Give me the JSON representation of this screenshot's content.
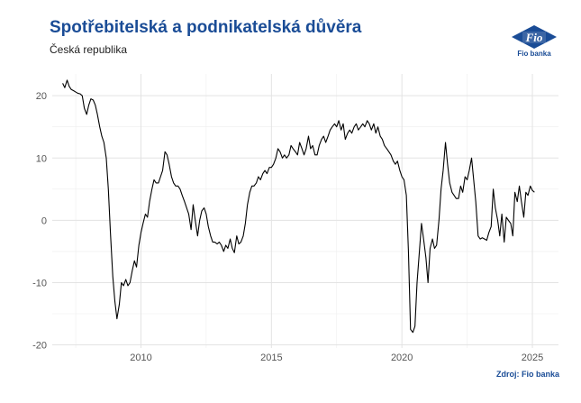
{
  "header": {
    "title": "Spotřebitelská a podnikatelská důvěra",
    "subtitle": "Česká republika",
    "logo_text": "Fio banka",
    "logo_mark": "Fio"
  },
  "footer": {
    "source": "Zdroj: Fio banka"
  },
  "colors": {
    "title": "#1a4c96",
    "line": "#000000",
    "grid": "#e3e3e3"
  },
  "chart_data": {
    "type": "line",
    "title": "Spotřebitelská a podnikatelská důvěra",
    "subtitle": "Česká republika",
    "xlabel": "",
    "ylabel": "",
    "xlim": [
      2006.6,
      2026.0
    ],
    "ylim": [
      -20.5,
      23.5
    ],
    "grid": true,
    "x_ticks": [
      2010,
      2015,
      2020,
      2025
    ],
    "x_tick_labels": [
      "2010",
      "2015",
      "2020",
      "2025"
    ],
    "y_ticks": [
      -20,
      -10,
      0,
      10,
      20
    ],
    "y_tick_labels": [
      "-20",
      "-10",
      "0",
      "10",
      "20"
    ],
    "series": [
      {
        "x": [
          2007.0,
          2007.08,
          2007.17,
          2007.25,
          2007.33,
          2007.42,
          2007.5,
          2007.58,
          2007.67,
          2007.75,
          2007.83,
          2007.92,
          2008.0,
          2008.08,
          2008.17,
          2008.25,
          2008.33,
          2008.42,
          2008.5,
          2008.58,
          2008.67,
          2008.75,
          2008.83,
          2008.92,
          2009.0,
          2009.08,
          2009.17,
          2009.25,
          2009.33,
          2009.42,
          2009.5,
          2009.58,
          2009.67,
          2009.75,
          2009.83,
          2009.92,
          2010.0,
          2010.08,
          2010.17,
          2010.25,
          2010.33,
          2010.42,
          2010.5,
          2010.58,
          2010.67,
          2010.75,
          2010.83,
          2010.92,
          2011.0,
          2011.08,
          2011.17,
          2011.25,
          2011.33,
          2011.42,
          2011.5,
          2011.58,
          2011.67,
          2011.75,
          2011.83,
          2011.92,
          2012.0,
          2012.08,
          2012.17,
          2012.25,
          2012.33,
          2012.42,
          2012.5,
          2012.58,
          2012.67,
          2012.75,
          2012.83,
          2012.92,
          2013.0,
          2013.08,
          2013.17,
          2013.25,
          2013.33,
          2013.42,
          2013.5,
          2013.58,
          2013.67,
          2013.75,
          2013.83,
          2013.92,
          2014.0,
          2014.08,
          2014.17,
          2014.25,
          2014.33,
          2014.42,
          2014.5,
          2014.58,
          2014.67,
          2014.75,
          2014.83,
          2014.92,
          2015.0,
          2015.08,
          2015.17,
          2015.25,
          2015.33,
          2015.42,
          2015.5,
          2015.58,
          2015.67,
          2015.75,
          2015.83,
          2015.92,
          2016.0,
          2016.08,
          2016.17,
          2016.25,
          2016.33,
          2016.42,
          2016.5,
          2016.58,
          2016.67,
          2016.75,
          2016.83,
          2016.92,
          2017.0,
          2017.08,
          2017.17,
          2017.25,
          2017.33,
          2017.42,
          2017.5,
          2017.58,
          2017.67,
          2017.75,
          2017.83,
          2017.92,
          2018.0,
          2018.08,
          2018.17,
          2018.25,
          2018.33,
          2018.42,
          2018.5,
          2018.58,
          2018.67,
          2018.75,
          2018.83,
          2018.92,
          2019.0,
          2019.08,
          2019.17,
          2019.25,
          2019.33,
          2019.42,
          2019.5,
          2019.58,
          2019.67,
          2019.75,
          2019.83,
          2019.92,
          2020.0,
          2020.08,
          2020.17,
          2020.25,
          2020.33,
          2020.42,
          2020.5,
          2020.58,
          2020.67,
          2020.75,
          2020.83,
          2020.92,
          2021.0,
          2021.08,
          2021.17,
          2021.25,
          2021.33,
          2021.42,
          2021.5,
          2021.58,
          2021.67,
          2021.75,
          2021.83,
          2021.92,
          2022.0,
          2022.08,
          2022.17,
          2022.25,
          2022.33,
          2022.42,
          2022.5,
          2022.58,
          2022.67,
          2022.75,
          2022.83,
          2022.92,
          2023.0,
          2023.08,
          2023.17,
          2023.25,
          2023.33,
          2023.42,
          2023.5,
          2023.58,
          2023.67,
          2023.75,
          2023.83,
          2023.92,
          2024.0,
          2024.08,
          2024.17,
          2024.25,
          2024.33,
          2024.42,
          2024.5,
          2024.58,
          2024.67,
          2024.75,
          2024.83,
          2024.92,
          2025.0,
          2025.08
        ],
        "y": [
          22.0,
          21.3,
          22.5,
          21.5,
          21.0,
          20.8,
          20.6,
          20.4,
          20.3,
          20.0,
          18.0,
          17.0,
          18.5,
          19.5,
          19.3,
          18.5,
          17.0,
          15.0,
          13.5,
          12.5,
          10.0,
          5.0,
          -2.0,
          -9.0,
          -13.0,
          -15.8,
          -13.5,
          -10.0,
          -10.5,
          -9.5,
          -10.5,
          -10.0,
          -8.0,
          -6.5,
          -7.5,
          -4.0,
          -2.0,
          -0.5,
          1.0,
          0.5,
          3.0,
          5.0,
          6.5,
          6.0,
          6.0,
          7.0,
          8.0,
          11.0,
          10.5,
          9.0,
          7.0,
          6.0,
          5.5,
          5.5,
          5.0,
          4.0,
          3.0,
          2.0,
          1.0,
          -1.5,
          2.5,
          0.0,
          -2.5,
          0.0,
          1.5,
          2.0,
          1.0,
          -1.0,
          -2.5,
          -3.5,
          -3.5,
          -3.8,
          -3.5,
          -4.0,
          -5.0,
          -4.0,
          -4.5,
          -3.0,
          -4.5,
          -5.2,
          -2.5,
          -3.8,
          -3.5,
          -2.5,
          -0.5,
          2.5,
          4.5,
          5.5,
          5.5,
          6.0,
          7.0,
          6.5,
          7.5,
          8.0,
          7.5,
          8.5,
          8.5,
          9.0,
          10.0,
          11.5,
          11.0,
          10.0,
          10.5,
          10.0,
          10.5,
          12.0,
          11.5,
          11.0,
          10.5,
          12.5,
          11.5,
          10.5,
          11.5,
          13.5,
          11.5,
          12.0,
          10.5,
          10.5,
          12.0,
          13.0,
          13.5,
          12.5,
          13.5,
          14.5,
          15.0,
          15.5,
          15.0,
          16.0,
          14.5,
          15.5,
          13.0,
          14.0,
          14.5,
          14.0,
          15.0,
          15.5,
          14.5,
          15.0,
          15.5,
          15.0,
          16.0,
          15.5,
          14.5,
          15.5,
          14.0,
          15.0,
          13.5,
          13.0,
          12.0,
          11.5,
          11.0,
          10.5,
          9.5,
          9.0,
          9.5,
          8.0,
          7.0,
          6.5,
          4.0,
          -5.0,
          -17.5,
          -18.0,
          -17.0,
          -10.0,
          -5.0,
          -0.5,
          -3.0,
          -6.0,
          -10.0,
          -4.5,
          -3.0,
          -4.5,
          -4.0,
          0.0,
          5.0,
          8.0,
          12.5,
          9.0,
          6.0,
          4.5,
          4.0,
          3.5,
          3.5,
          5.5,
          4.5,
          7.0,
          6.5,
          8.0,
          10.0,
          6.5,
          3.0,
          -2.5,
          -3.0,
          -2.8,
          -3.0,
          -3.2,
          -2.0,
          -1.0,
          5.0,
          2.0,
          0.0,
          -2.5,
          1.0,
          -3.5,
          0.5,
          0.0,
          -0.5,
          -2.5,
          4.5,
          3.0,
          5.5,
          3.0,
          0.5,
          4.5,
          4.0,
          5.5,
          4.8,
          4.5
        ]
      }
    ]
  }
}
